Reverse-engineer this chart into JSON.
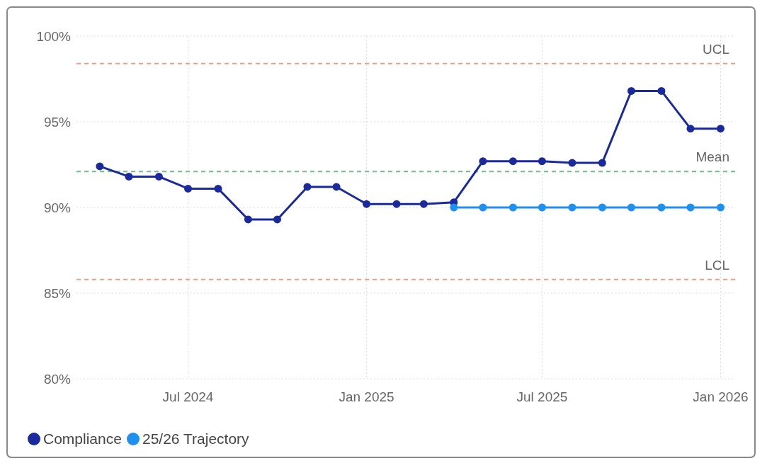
{
  "chart_data": {
    "type": "line",
    "xlim": [
      "2024-03-08",
      "2026-01-16"
    ],
    "xticks": [
      {
        "value": "2024-07",
        "label": "Jul 2024"
      },
      {
        "value": "2025-01",
        "label": "Jan 2025"
      },
      {
        "value": "2025-07",
        "label": "Jul 2025"
      },
      {
        "value": "2026-01",
        "label": "Jan 2026"
      }
    ],
    "ylim": [
      80,
      100
    ],
    "yticks": [
      {
        "value": 80,
        "label": "80%"
      },
      {
        "value": 85,
        "label": "85%"
      },
      {
        "value": 90,
        "label": "90%"
      },
      {
        "value": 95,
        "label": "95%"
      },
      {
        "value": 100,
        "label": "100%"
      }
    ],
    "series": [
      {
        "name": "Compliance",
        "color": "#1a2a9c",
        "x": [
          "2024-04",
          "2024-05",
          "2024-06",
          "2024-07",
          "2024-08",
          "2024-09",
          "2024-10",
          "2024-11",
          "2024-12",
          "2025-01",
          "2025-02",
          "2025-03",
          "2025-04",
          "2025-05",
          "2025-06",
          "2025-07",
          "2025-08",
          "2025-09",
          "2025-10",
          "2025-11",
          "2025-12",
          "2026-01"
        ],
        "values": [
          92.4,
          91.8,
          91.8,
          91.1,
          91.1,
          89.3,
          89.3,
          91.2,
          91.2,
          90.2,
          90.2,
          90.2,
          90.3,
          92.7,
          92.7,
          92.7,
          92.6,
          92.6,
          96.8,
          96.8,
          94.6,
          94.6
        ]
      },
      {
        "name": "25/26 Trajectory",
        "color": "#1e90f0",
        "x": [
          "2025-04",
          "2025-05",
          "2025-06",
          "2025-07",
          "2025-08",
          "2025-09",
          "2025-10",
          "2025-11",
          "2025-12",
          "2026-01"
        ],
        "values": [
          90,
          90,
          90,
          90,
          90,
          90,
          90,
          90,
          90,
          90
        ]
      }
    ],
    "ref_lines": [
      {
        "axis": "y",
        "value": 98.4,
        "label": "UCL",
        "color": "#e8a08c",
        "line_style": "dashed"
      },
      {
        "axis": "y",
        "value": 92.1,
        "label": "Mean",
        "color": "#6cc08b",
        "line_style": "dashed"
      },
      {
        "axis": "y",
        "value": 85.8,
        "label": "LCL",
        "color": "#e8a08c",
        "line_style": "dashed"
      }
    ],
    "grid": true,
    "legend": "bottom left",
    "marker": "circle",
    "line_style": "solid"
  }
}
